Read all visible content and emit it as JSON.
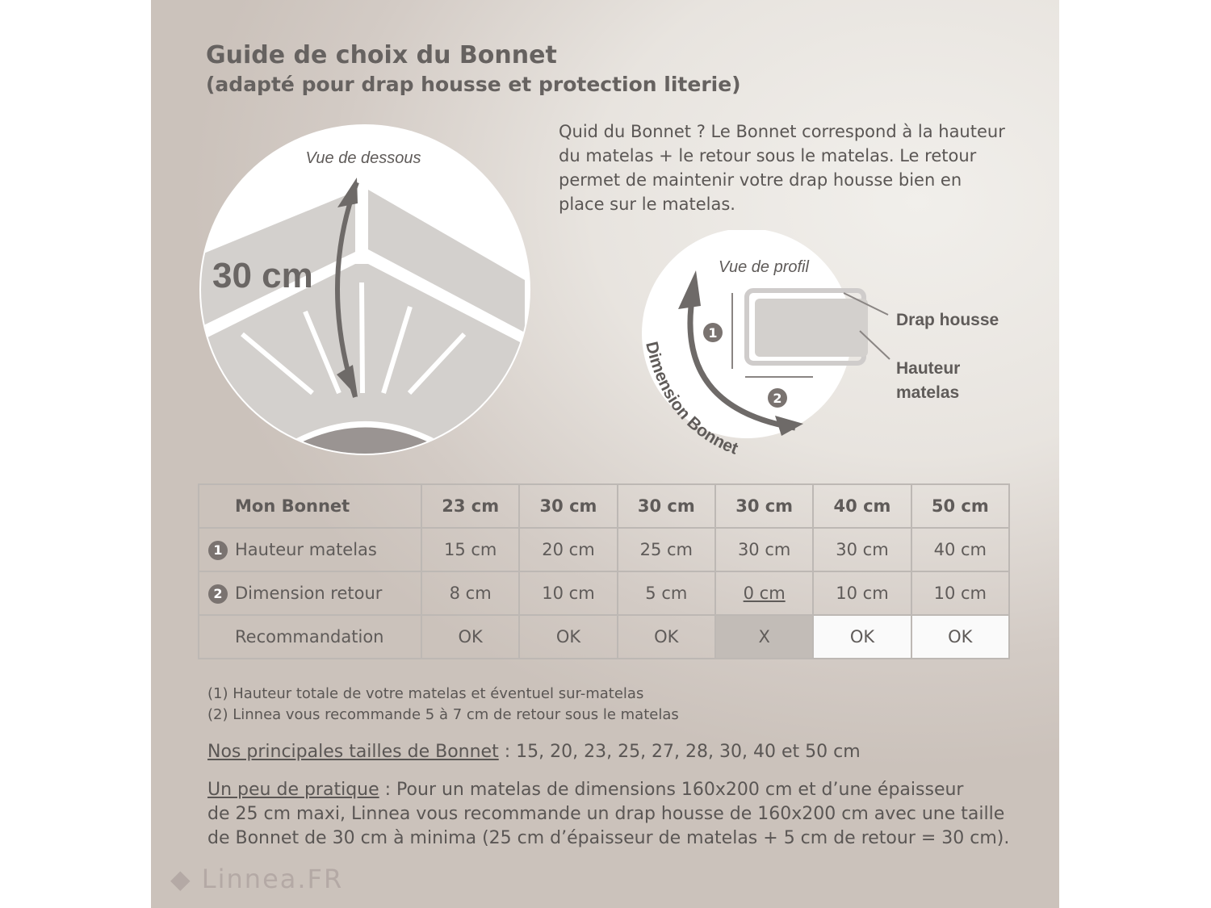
{
  "title": "Guide de choix du Bonnet",
  "subtitle": "(adapté pour drap housse et protection literie)",
  "intro": "Quid du Bonnet ? Le Bonnet correspond à la hauteur du matelas + le retour sous le matelas. Le retour permet de maintenir votre drap housse bien en place sur le matelas.",
  "diagram_below": {
    "caption": "Vue de dessous",
    "measure": "30 cm"
  },
  "diagram_profile": {
    "caption": "Vue de profil",
    "arc_label": "Dimension Bonnet",
    "label_sheet": "Drap housse",
    "label_height_1": "Hauteur",
    "label_height_2": "matelas",
    "marker_1": "1",
    "marker_2": "2"
  },
  "table": {
    "header": [
      "Mon Bonnet",
      "23 cm",
      "30 cm",
      "30 cm",
      "30 cm",
      "40 cm",
      "50 cm"
    ],
    "rows": [
      {
        "marker": "1",
        "label": "Hauteur matelas",
        "values": [
          "15 cm",
          "20 cm",
          "25 cm",
          "30 cm",
          "30 cm",
          "40 cm"
        ]
      },
      {
        "marker": "2",
        "label": "Dimension retour",
        "values": [
          "8 cm",
          "10 cm",
          "5 cm",
          "0 cm",
          "10 cm",
          "10 cm"
        ]
      },
      {
        "label": "Recommandation",
        "values": [
          "OK",
          "OK",
          "OK",
          "X",
          "OK",
          "OK"
        ]
      }
    ]
  },
  "notes": [
    "(1) Hauteur totale de votre matelas et éventuel sur-matelas",
    "(2) Linnea vous recommande 5 à 7 cm de retour sous le matelas"
  ],
  "sizes": {
    "label": "Nos principales tailles de Bonnet",
    "text": " : 15, 20, 23, 25, 27, 28, 30, 40 et 50 cm"
  },
  "practice": {
    "label": "Un peu de pratique",
    "line1": " : Pour un matelas de dimensions 160x200 cm et d’une épaisseur",
    "line2": "de 25 cm maxi, Linnea vous recommande un drap housse de 160x200 cm avec une taille",
    "line3": "de Bonnet de 30 cm à minima (25 cm d’épaisseur de matelas + 5 cm de retour = 30 cm)."
  },
  "logo": "Linnea.FR",
  "colors": {
    "text": "#5f5b59",
    "arrow": "#6e6a68",
    "fabric": "#d3d0cd",
    "warning_cell": "#c2bcb7"
  }
}
